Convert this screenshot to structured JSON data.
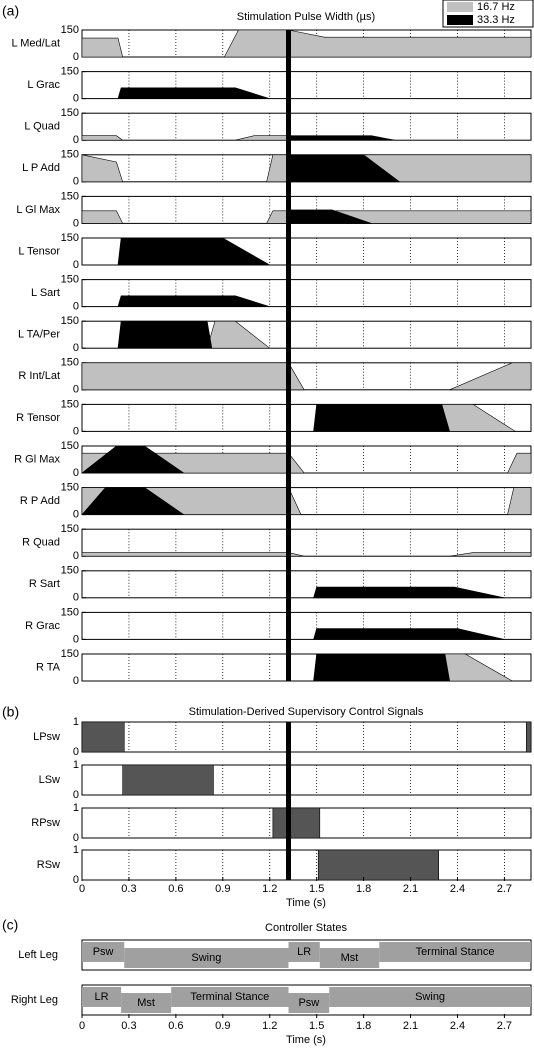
{
  "chart_data": [
    {
      "type": "area",
      "panel_label": "(a)",
      "title": "Stimulation Pulse Width (µs)",
      "legend": [
        {
          "name": "16.7 Hz",
          "color": "#c0c0c0"
        },
        {
          "name": "33.3 Hz",
          "color": "#000000"
        }
      ],
      "xlim": [
        0,
        2.87
      ],
      "xticks": [
        0,
        0.3,
        0.6,
        0.9,
        1.2,
        1.5,
        1.8,
        2.1,
        2.4,
        2.7
      ],
      "ylim": [
        0,
        150
      ],
      "yticks": [
        0,
        150
      ],
      "marker_x": 1.32,
      "channels": [
        {
          "name": "L Med/Lat",
          "series": [
            {
              "color": "#c0c0c0",
              "x": [
                0,
                0.23,
                0.26
              ],
              "y": [
                105,
                105,
                0
              ]
            },
            {
              "color": "#c0c0c0",
              "x": [
                0.91,
                1.0,
                1.32,
                1.55,
                2.87
              ],
              "y": [
                0,
                150,
                150,
                110,
                110
              ]
            }
          ]
        },
        {
          "name": "L Grac",
          "series": [
            {
              "color": "#000000",
              "x": [
                0.23,
                0.25,
                0.98,
                1.2
              ],
              "y": [
                0,
                60,
                60,
                0
              ]
            }
          ]
        },
        {
          "name": "L Quad",
          "series": [
            {
              "color": "#c0c0c0",
              "x": [
                0,
                0.22,
                0.26
              ],
              "y": [
                25,
                25,
                0
              ]
            },
            {
              "color": "#c0c0c0",
              "x": [
                0.98,
                1.1,
                1.32
              ],
              "y": [
                0,
                25,
                25
              ]
            },
            {
              "color": "#000000",
              "x": [
                1.32,
                1.85,
                2.0
              ],
              "y": [
                25,
                25,
                0
              ]
            }
          ]
        },
        {
          "name": "L P Add",
          "series": [
            {
              "color": "#c0c0c0",
              "x": [
                0,
                0.22,
                0.26
              ],
              "y": [
                150,
                110,
                0
              ]
            },
            {
              "color": "#c0c0c0",
              "x": [
                1.18,
                1.22,
                2.87
              ],
              "y": [
                0,
                150,
                150
              ]
            },
            {
              "color": "#000000",
              "x": [
                1.32,
                1.8,
                2.03
              ],
              "y": [
                150,
                150,
                0
              ]
            }
          ]
        },
        {
          "name": "L Gl Max",
          "series": [
            {
              "color": "#c0c0c0",
              "x": [
                0,
                0.22,
                0.26
              ],
              "y": [
                70,
                70,
                0
              ]
            },
            {
              "color": "#c0c0c0",
              "x": [
                1.18,
                1.22,
                2.87
              ],
              "y": [
                0,
                70,
                70
              ]
            },
            {
              "color": "#000000",
              "x": [
                1.32,
                1.6,
                1.85
              ],
              "y": [
                75,
                75,
                0
              ]
            }
          ]
        },
        {
          "name": "L Tensor",
          "series": [
            {
              "color": "#000000",
              "x": [
                0.23,
                0.25,
                0.9,
                1.2
              ],
              "y": [
                0,
                150,
                150,
                0
              ]
            }
          ]
        },
        {
          "name": "L Sart",
          "series": [
            {
              "color": "#000000",
              "x": [
                0.23,
                0.25,
                0.98,
                1.2
              ],
              "y": [
                0,
                60,
                60,
                0
              ]
            }
          ]
        },
        {
          "name": "L TA/Per",
          "series": [
            {
              "color": "#c0c0c0",
              "x": [
                0.8,
                0.85,
                0.98,
                1.2
              ],
              "y": [
                0,
                150,
                150,
                0
              ]
            },
            {
              "color": "#000000",
              "x": [
                0.23,
                0.25,
                0.8,
                0.83
              ],
              "y": [
                0,
                150,
                150,
                0
              ]
            }
          ]
        },
        {
          "name": "R Int/Lat",
          "series": [
            {
              "color": "#c0c0c0",
              "x": [
                0,
                1.32,
                1.42
              ],
              "y": [
                150,
                150,
                0
              ]
            },
            {
              "color": "#c0c0c0",
              "x": [
                2.35,
                2.75,
                2.87
              ],
              "y": [
                0,
                150,
                150
              ]
            }
          ]
        },
        {
          "name": "R Tensor",
          "series": [
            {
              "color": "#c0c0c0",
              "x": [
                2.3,
                2.5,
                2.77
              ],
              "y": [
                150,
                150,
                0
              ]
            },
            {
              "color": "#000000",
              "x": [
                1.48,
                1.5,
                2.3,
                2.35
              ],
              "y": [
                0,
                150,
                150,
                0
              ]
            }
          ]
        },
        {
          "name": "R Gl Max",
          "series": [
            {
              "color": "#c0c0c0",
              "x": [
                0,
                1.32,
                1.42
              ],
              "y": [
                110,
                110,
                0
              ]
            },
            {
              "color": "#000000",
              "x": [
                0,
                0.22,
                0.4,
                0.65
              ],
              "y": [
                0,
                150,
                150,
                0
              ]
            },
            {
              "color": "#c0c0c0",
              "x": [
                2.72,
                2.78,
                2.87
              ],
              "y": [
                0,
                110,
                110
              ]
            }
          ]
        },
        {
          "name": "R P Add",
          "series": [
            {
              "color": "#c0c0c0",
              "x": [
                0,
                1.32,
                1.4
              ],
              "y": [
                150,
                150,
                0
              ]
            },
            {
              "color": "#000000",
              "x": [
                0,
                0.15,
                0.4,
                0.65
              ],
              "y": [
                0,
                150,
                150,
                0
              ]
            },
            {
              "color": "#c0c0c0",
              "x": [
                2.72,
                2.76,
                2.87
              ],
              "y": [
                0,
                150,
                150
              ]
            }
          ]
        },
        {
          "name": "R Quad",
          "series": [
            {
              "color": "#c0c0c0",
              "x": [
                0,
                1.32,
                1.42
              ],
              "y": [
                20,
                20,
                0
              ]
            },
            {
              "color": "#c0c0c0",
              "x": [
                2.35,
                2.5,
                2.87
              ],
              "y": [
                0,
                20,
                20
              ]
            }
          ]
        },
        {
          "name": "R Sart",
          "series": [
            {
              "color": "#000000",
              "x": [
                1.48,
                1.5,
                2.38,
                2.7
              ],
              "y": [
                0,
                60,
                60,
                0
              ]
            }
          ]
        },
        {
          "name": "R Grac",
          "series": [
            {
              "color": "#000000",
              "x": [
                1.48,
                1.5,
                2.4,
                2.7
              ],
              "y": [
                0,
                60,
                60,
                0
              ]
            }
          ]
        },
        {
          "name": "R TA",
          "series": [
            {
              "color": "#c0c0c0",
              "x": [
                2.3,
                2.45,
                2.75
              ],
              "y": [
                150,
                150,
                0
              ]
            },
            {
              "color": "#000000",
              "x": [
                1.48,
                1.5,
                2.32,
                2.35
              ],
              "y": [
                0,
                150,
                150,
                0
              ]
            }
          ]
        }
      ]
    },
    {
      "type": "step",
      "panel_label": "(b)",
      "title": "Stimulation-Derived Supervisory Control Signals",
      "xlim": [
        0,
        2.87
      ],
      "xticks": [
        0,
        0.3,
        0.6,
        0.9,
        1.2,
        1.5,
        1.8,
        2.1,
        2.4,
        2.7
      ],
      "ylim": [
        0,
        1
      ],
      "yticks": [
        0,
        1
      ],
      "marker_x": 1.32,
      "xlabel": "Time (s)",
      "color": "#555555",
      "channels": [
        {
          "name": "LPsw",
          "x": [
            0,
            0,
            0.27,
            0.27,
            2.84,
            2.84,
            2.87
          ],
          "y": [
            0,
            1,
            1,
            0,
            0,
            1,
            1
          ]
        },
        {
          "name": "LSw",
          "x": [
            0.26,
            0.26,
            0.84,
            0.84
          ],
          "y": [
            0,
            1,
            1,
            0
          ]
        },
        {
          "name": "RPsw",
          "x": [
            1.22,
            1.22,
            1.52,
            1.52
          ],
          "y": [
            0,
            1,
            1,
            0
          ]
        },
        {
          "name": "RSw",
          "x": [
            1.51,
            1.51,
            2.28,
            2.28
          ],
          "y": [
            0,
            1,
            1,
            0
          ]
        }
      ]
    },
    {
      "type": "timeline",
      "panel_label": "(c)",
      "title": "Controller States",
      "xlim": [
        0,
        2.87
      ],
      "xticks": [
        0,
        0.3,
        0.6,
        0.9,
        1.2,
        1.5,
        1.8,
        2.1,
        2.4,
        2.7
      ],
      "xlabel": "Time (s)",
      "color": "#a0a0a0",
      "rows": [
        {
          "name": "Left Leg",
          "states": [
            {
              "label": "Psw",
              "start": 0,
              "end": 0.27
            },
            {
              "label": "Swing",
              "start": 0.27,
              "end": 1.32
            },
            {
              "label": "LR",
              "start": 1.32,
              "end": 1.52
            },
            {
              "label": "Mst",
              "start": 1.52,
              "end": 1.9
            },
            {
              "label": "Terminal Stance",
              "start": 1.9,
              "end": 2.87
            }
          ]
        },
        {
          "name": "Right Leg",
          "states": [
            {
              "label": "LR",
              "start": 0,
              "end": 0.25
            },
            {
              "label": "Mst",
              "start": 0.25,
              "end": 0.57
            },
            {
              "label": "Terminal Stance",
              "start": 0.57,
              "end": 1.32
            },
            {
              "label": "Psw",
              "start": 1.32,
              "end": 1.58
            },
            {
              "label": "Swing",
              "start": 1.58,
              "end": 2.87
            }
          ]
        }
      ]
    }
  ]
}
